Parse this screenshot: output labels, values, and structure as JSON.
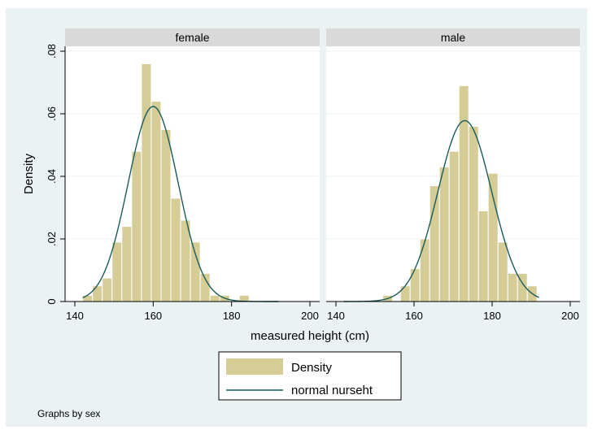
{
  "colors": {
    "outer_background": "#eaf2f3",
    "plot_background": "#ffffff",
    "panel_header": "#d9d9d9",
    "bar_fill": "#d6cc96",
    "bar_edge": "#ffffff",
    "curve": "#1a5c5c",
    "grid": "#eaf2f3"
  },
  "chart_data": {
    "type": "bar",
    "ylabel": "Density",
    "xlabel": "measured height (cm)",
    "note": "Graphs by sex",
    "xlim": [
      140,
      200
    ],
    "ylim": [
      0,
      0.08
    ],
    "x_ticks": [
      140,
      160,
      180,
      200
    ],
    "x_tick_labels": [
      "140",
      "160",
      "180",
      "200"
    ],
    "y_ticks": [
      0,
      0.02,
      0.04,
      0.06,
      0.08
    ],
    "y_tick_labels": [
      "0",
      ".02",
      ".04",
      ".06",
      ".08"
    ],
    "grid": true,
    "legend": {
      "position": "bottom-center",
      "entries": [
        {
          "label": "Density",
          "kind": "bar"
        },
        {
          "label": "normal nurseht",
          "kind": "line"
        }
      ]
    },
    "panels": [
      {
        "title": "female",
        "bin_width": 2.5,
        "bins": [
          {
            "x0": 142,
            "density": 0.002
          },
          {
            "x0": 144.5,
            "density": 0.005
          },
          {
            "x0": 147,
            "density": 0.0075
          },
          {
            "x0": 149.5,
            "density": 0.019
          },
          {
            "x0": 152,
            "density": 0.024
          },
          {
            "x0": 154.5,
            "density": 0.048
          },
          {
            "x0": 157,
            "density": 0.076
          },
          {
            "x0": 159.5,
            "density": 0.064
          },
          {
            "x0": 162,
            "density": 0.055
          },
          {
            "x0": 164.5,
            "density": 0.033
          },
          {
            "x0": 167,
            "density": 0.026
          },
          {
            "x0": 169.5,
            "density": 0.019
          },
          {
            "x0": 172,
            "density": 0.009
          },
          {
            "x0": 174.5,
            "density": 0.002
          },
          {
            "x0": 177,
            "density": 0.002
          },
          {
            "x0": 182,
            "density": 0.002
          }
        ],
        "normal": {
          "mean": 160,
          "sd": 6.4,
          "x_range": [
            142,
            192
          ]
        }
      },
      {
        "title": "male",
        "bin_width": 2.5,
        "bins": [
          {
            "x0": 152,
            "density": 0.002
          },
          {
            "x0": 156.5,
            "density": 0.005
          },
          {
            "x0": 159,
            "density": 0.0105
          },
          {
            "x0": 161.5,
            "density": 0.02
          },
          {
            "x0": 164,
            "density": 0.037
          },
          {
            "x0": 166.5,
            "density": 0.043
          },
          {
            "x0": 169,
            "density": 0.048
          },
          {
            "x0": 171.5,
            "density": 0.069
          },
          {
            "x0": 174,
            "density": 0.056
          },
          {
            "x0": 176.5,
            "density": 0.029
          },
          {
            "x0": 179,
            "density": 0.041
          },
          {
            "x0": 181.5,
            "density": 0.019
          },
          {
            "x0": 184,
            "density": 0.009
          },
          {
            "x0": 186.5,
            "density": 0.009
          },
          {
            "x0": 189,
            "density": 0.005
          }
        ],
        "normal": {
          "mean": 173,
          "sd": 6.9,
          "x_range": [
            142,
            192
          ]
        }
      }
    ]
  }
}
